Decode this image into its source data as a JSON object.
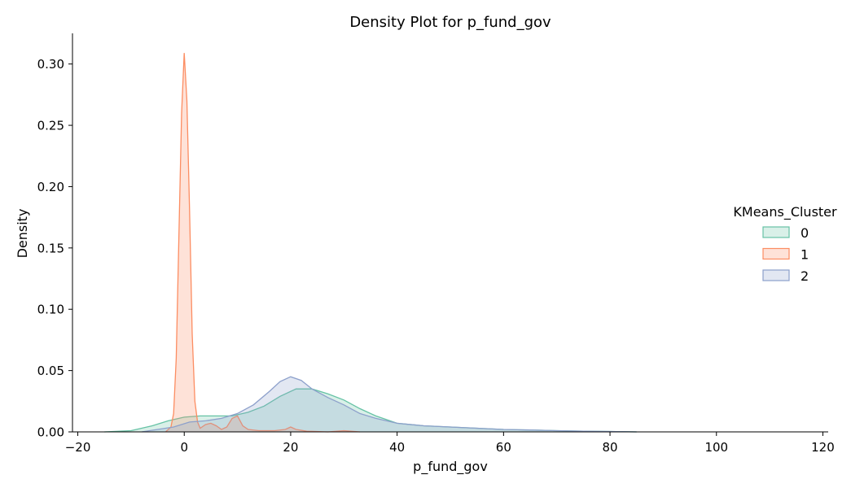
{
  "chart_data": {
    "type": "area",
    "title": "Density Plot for p_fund_gov",
    "xlabel": "p_fund_gov",
    "ylabel": "Density",
    "xlim": [
      -21,
      121
    ],
    "ylim": [
      0,
      0.325
    ],
    "xticks": [
      -20,
      0,
      20,
      40,
      60,
      80,
      100,
      120
    ],
    "xtick_labels": [
      "−20",
      "0",
      "20",
      "40",
      "60",
      "80",
      "100",
      "120"
    ],
    "yticks": [
      0.0,
      0.05,
      0.1,
      0.15,
      0.2,
      0.25,
      0.3
    ],
    "ytick_labels": [
      "0.00",
      "0.05",
      "0.10",
      "0.15",
      "0.20",
      "0.25",
      "0.30"
    ],
    "grid": false,
    "legend": {
      "title": "KMeans_Cluster",
      "placement": "right"
    },
    "series": [
      {
        "name": "0",
        "color": "#66c2a5",
        "points": [
          [
            -15,
            0
          ],
          [
            -10,
            0.001
          ],
          [
            -6,
            0.005
          ],
          [
            -3,
            0.009
          ],
          [
            0,
            0.012
          ],
          [
            3,
            0.013
          ],
          [
            6,
            0.013
          ],
          [
            9,
            0.013
          ],
          [
            12,
            0.016
          ],
          [
            15,
            0.021
          ],
          [
            18,
            0.029
          ],
          [
            21,
            0.035
          ],
          [
            24,
            0.035
          ],
          [
            27,
            0.031
          ],
          [
            30,
            0.026
          ],
          [
            33,
            0.019
          ],
          [
            36,
            0.013
          ],
          [
            40,
            0.007
          ],
          [
            45,
            0.005
          ],
          [
            50,
            0.004
          ],
          [
            55,
            0.003
          ],
          [
            60,
            0.002
          ],
          [
            65,
            0.0015
          ],
          [
            70,
            0.001
          ],
          [
            75,
            0.0005
          ],
          [
            80,
            0.0003
          ],
          [
            85,
            0
          ]
        ]
      },
      {
        "name": "1",
        "color": "#fc8d62",
        "points": [
          [
            -3.5,
            0
          ],
          [
            -2.5,
            0.004
          ],
          [
            -2,
            0.015
          ],
          [
            -1.5,
            0.06
          ],
          [
            -1,
            0.16
          ],
          [
            -0.5,
            0.26
          ],
          [
            0,
            0.309
          ],
          [
            0.5,
            0.27
          ],
          [
            1,
            0.18
          ],
          [
            1.5,
            0.08
          ],
          [
            2,
            0.025
          ],
          [
            2.5,
            0.008
          ],
          [
            3,
            0.003
          ],
          [
            4,
            0.006
          ],
          [
            5,
            0.007
          ],
          [
            6,
            0.005
          ],
          [
            7,
            0.002
          ],
          [
            8,
            0.004
          ],
          [
            9,
            0.011
          ],
          [
            10,
            0.013
          ],
          [
            11,
            0.005
          ],
          [
            12,
            0.002
          ],
          [
            14,
            0.001
          ],
          [
            17,
            0.001
          ],
          [
            19,
            0.002
          ],
          [
            20,
            0.004
          ],
          [
            21,
            0.002
          ],
          [
            23,
            0.0005
          ],
          [
            27,
            0
          ],
          [
            30,
            0.001
          ],
          [
            33,
            0
          ]
        ]
      },
      {
        "name": "2",
        "color": "#8da0cb",
        "points": [
          [
            -8,
            0
          ],
          [
            -5,
            0.002
          ],
          [
            -2,
            0.004
          ],
          [
            1,
            0.008
          ],
          [
            4,
            0.009
          ],
          [
            7,
            0.011
          ],
          [
            10,
            0.015
          ],
          [
            13,
            0.022
          ],
          [
            16,
            0.033
          ],
          [
            18,
            0.041
          ],
          [
            20,
            0.045
          ],
          [
            22,
            0.042
          ],
          [
            24,
            0.035
          ],
          [
            27,
            0.028
          ],
          [
            30,
            0.022
          ],
          [
            33,
            0.015
          ],
          [
            36,
            0.011
          ],
          [
            40,
            0.007
          ],
          [
            45,
            0.005
          ],
          [
            50,
            0.004
          ],
          [
            55,
            0.003
          ],
          [
            60,
            0.002
          ],
          [
            65,
            0.0015
          ],
          [
            70,
            0.001
          ],
          [
            75,
            0.0006
          ],
          [
            80,
            0.0003
          ],
          [
            85,
            0
          ]
        ]
      }
    ]
  }
}
